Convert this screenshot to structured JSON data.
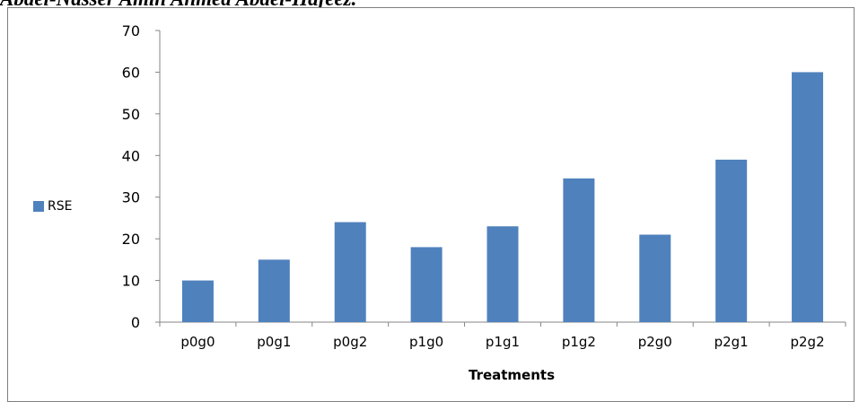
{
  "header": {
    "text": "Abdel-Nasser Amin Ahmed Abdel-Hafeez."
  },
  "chart_data": {
    "type": "bar",
    "categories": [
      "p0g0",
      "p0g1",
      "p0g2",
      "p1g0",
      "p1g1",
      "p1g2",
      "p2g0",
      "p2g1",
      "p2g2"
    ],
    "series": [
      {
        "name": "RSE",
        "values": [
          10,
          15,
          24,
          18,
          23,
          34.5,
          21,
          39,
          60
        ],
        "color": "#4f81bd"
      }
    ],
    "title": "",
    "xlabel": "Treatments",
    "ylabel": "",
    "ylim": [
      0,
      70
    ],
    "yticks": [
      "0",
      "10",
      "20",
      "30",
      "40",
      "50",
      "60",
      "70"
    ],
    "grid": false,
    "legend_position": "left"
  }
}
